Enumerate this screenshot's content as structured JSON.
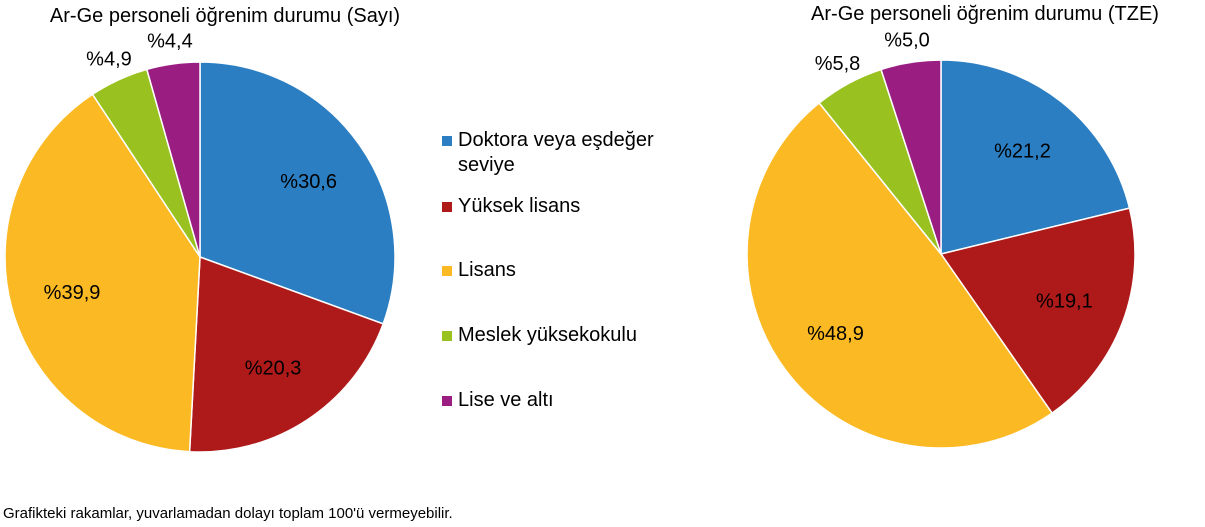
{
  "chart_data": [
    {
      "type": "pie",
      "title": "Ar-Ge personeli öğrenim durumu (Sayı)",
      "categories": [
        "Doktora veya eşdeğer seviye",
        "Yüksek lisans",
        "Lisans",
        "Meslek yüksekokulu",
        "Lise ve altı"
      ],
      "values": [
        30.6,
        20.3,
        39.9,
        4.9,
        4.4
      ],
      "labels": [
        "%30,6",
        "%20,3",
        "%39,9",
        "%4,9",
        "%4,4"
      ],
      "start": "top",
      "direction": "clockwise"
    },
    {
      "type": "pie",
      "title": "Ar-Ge personeli öğrenim durumu (TZE)",
      "categories": [
        "Doktora veya eşdeğer seviye",
        "Yüksek lisans",
        "Lisans",
        "Meslek yüksekokulu",
        "Lise ve altı"
      ],
      "values": [
        21.2,
        19.1,
        48.9,
        5.8,
        5.0
      ],
      "labels": [
        "%21,2",
        "%19,1",
        "%48,9",
        "%5,8",
        "%5,0"
      ],
      "start": "top",
      "direction": "clockwise"
    }
  ],
  "legend": {
    "placement": "center",
    "items": [
      {
        "line1": "Doktora veya eşdeğer",
        "line2": "seviye",
        "color": "#2b7ec1"
      },
      {
        "line1": "Yüksek lisans",
        "color": "#ae1a1a"
      },
      {
        "line1": "Lisans",
        "color": "#fbb923"
      },
      {
        "line1": "Meslek yüksekokulu",
        "color": "#99c11f"
      },
      {
        "line1": "Lise ve altı",
        "color": "#9a1d82"
      }
    ]
  },
  "footnote": "Grafikteki rakamlar, yuvarlamadan dolayı toplam 100'ü vermeyebilir."
}
